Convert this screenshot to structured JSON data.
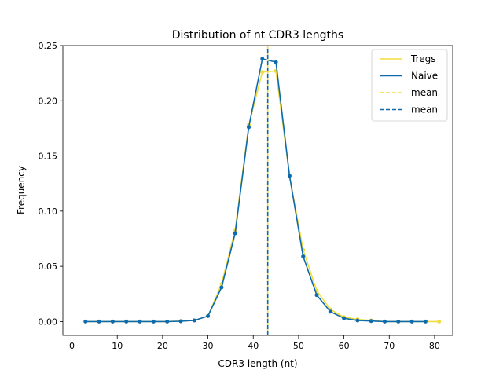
{
  "chart_data": {
    "type": "line",
    "title": "Distribution of nt CDR3 lengths",
    "xlabel": "CDR3 length (nt)",
    "ylabel": "Frequency",
    "xlim": [
      -2,
      84
    ],
    "ylim": [
      -0.0125,
      0.25
    ],
    "xticks": [
      0,
      10,
      20,
      30,
      40,
      50,
      60,
      70,
      80
    ],
    "yticks": [
      0.0,
      0.05,
      0.1,
      0.15,
      0.2,
      0.25
    ],
    "ytick_labels": [
      "0.00",
      "0.05",
      "0.10",
      "0.15",
      "0.20",
      "0.25"
    ],
    "grid": false,
    "legend_position": "top-right",
    "series": [
      {
        "name": "Tregs",
        "color": "#f2dc3d",
        "x": [
          3,
          6,
          9,
          12,
          15,
          18,
          21,
          24,
          27,
          30,
          33,
          36,
          39,
          42,
          45,
          48,
          51,
          54,
          57,
          60,
          63,
          66,
          69,
          72,
          75,
          78,
          81
        ],
        "y": [
          0.0,
          0.0,
          0.0,
          0.0,
          0.0,
          0.0,
          0.0,
          0.0005,
          0.001,
          0.005,
          0.034,
          0.083,
          0.178,
          0.226,
          0.227,
          0.132,
          0.065,
          0.028,
          0.011,
          0.004,
          0.002,
          0.001,
          0.0,
          0.0,
          0.0,
          0.0,
          0.0
        ]
      },
      {
        "name": "Naive",
        "color": "#0d6bad",
        "x": [
          3,
          6,
          9,
          12,
          15,
          18,
          21,
          24,
          27,
          30,
          33,
          36,
          39,
          42,
          45,
          48,
          51,
          54,
          57,
          60,
          63,
          66,
          69,
          72,
          75,
          78
        ],
        "y": [
          0.0,
          0.0,
          0.0,
          0.0,
          0.0,
          0.0,
          0.0,
          0.0003,
          0.001,
          0.005,
          0.031,
          0.08,
          0.176,
          0.238,
          0.235,
          0.132,
          0.059,
          0.024,
          0.009,
          0.003,
          0.001,
          0.0005,
          0.0,
          0.0,
          0.0,
          0.0
        ]
      }
    ],
    "mean_lines": [
      {
        "label": "mean",
        "x": 43.2,
        "color": "#f2dc3d",
        "style": "dashed"
      },
      {
        "label": "mean",
        "x": 43.2,
        "color": "#0d6bad",
        "style": "dashed"
      }
    ]
  }
}
